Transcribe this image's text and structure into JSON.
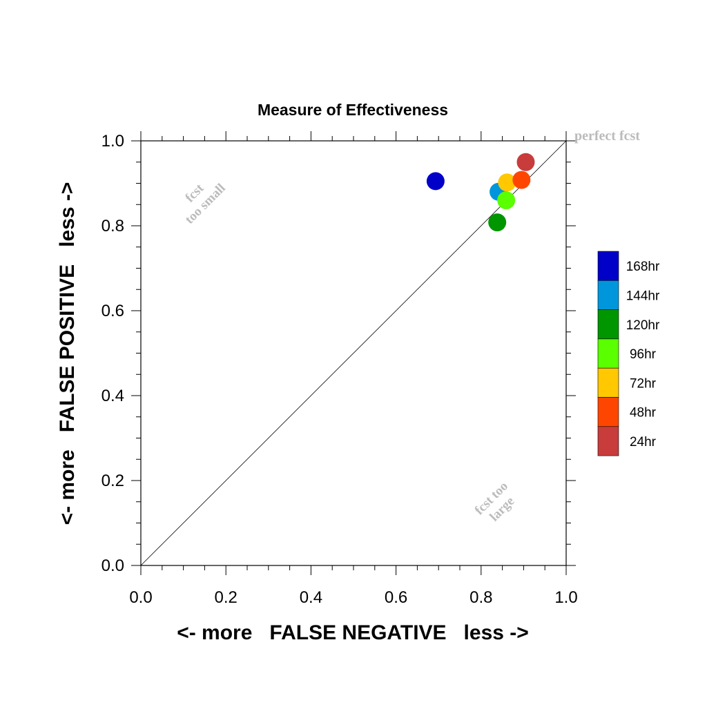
{
  "chart_data": {
    "type": "scatter",
    "title": "Measure of Effectiveness",
    "xlabel": "<- more   FALSE NEGATIVE   less ->",
    "ylabel": "<- more   FALSE POSITIVE   less ->",
    "xlim": [
      0.0,
      1.0
    ],
    "ylim": [
      0.0,
      1.0
    ],
    "x_ticks": [
      "0.0",
      "0.2",
      "0.4",
      "0.6",
      "0.8",
      "1.0"
    ],
    "y_ticks": [
      "0.0",
      "0.2",
      "0.4",
      "0.6",
      "0.8",
      "1.0"
    ],
    "grid": false,
    "diagonal_line": true,
    "annotations": {
      "perfect": "perfect fcst",
      "too_small_1": "fcst",
      "too_small_2": "too small",
      "too_large_1": "fcst too",
      "too_large_2": "large"
    },
    "legend_placement": "right",
    "series": [
      {
        "name": "168hr",
        "color": "#0000c8",
        "x": 0.693,
        "y": 0.905
      },
      {
        "name": "144hr",
        "color": "#0096dc",
        "x": 0.841,
        "y": 0.88
      },
      {
        "name": "120hr",
        "color": "#009600",
        "x": 0.838,
        "y": 0.808
      },
      {
        "name": "96hr",
        "color": "#5aff00",
        "x": 0.859,
        "y": 0.86
      },
      {
        "name": "72hr",
        "color": "#ffc800",
        "x": 0.861,
        "y": 0.902
      },
      {
        "name": "48hr",
        "color": "#ff4600",
        "x": 0.895,
        "y": 0.908
      },
      {
        "name": "24hr",
        "color": "#c83c3c",
        "x": 0.905,
        "y": 0.95
      }
    ]
  }
}
